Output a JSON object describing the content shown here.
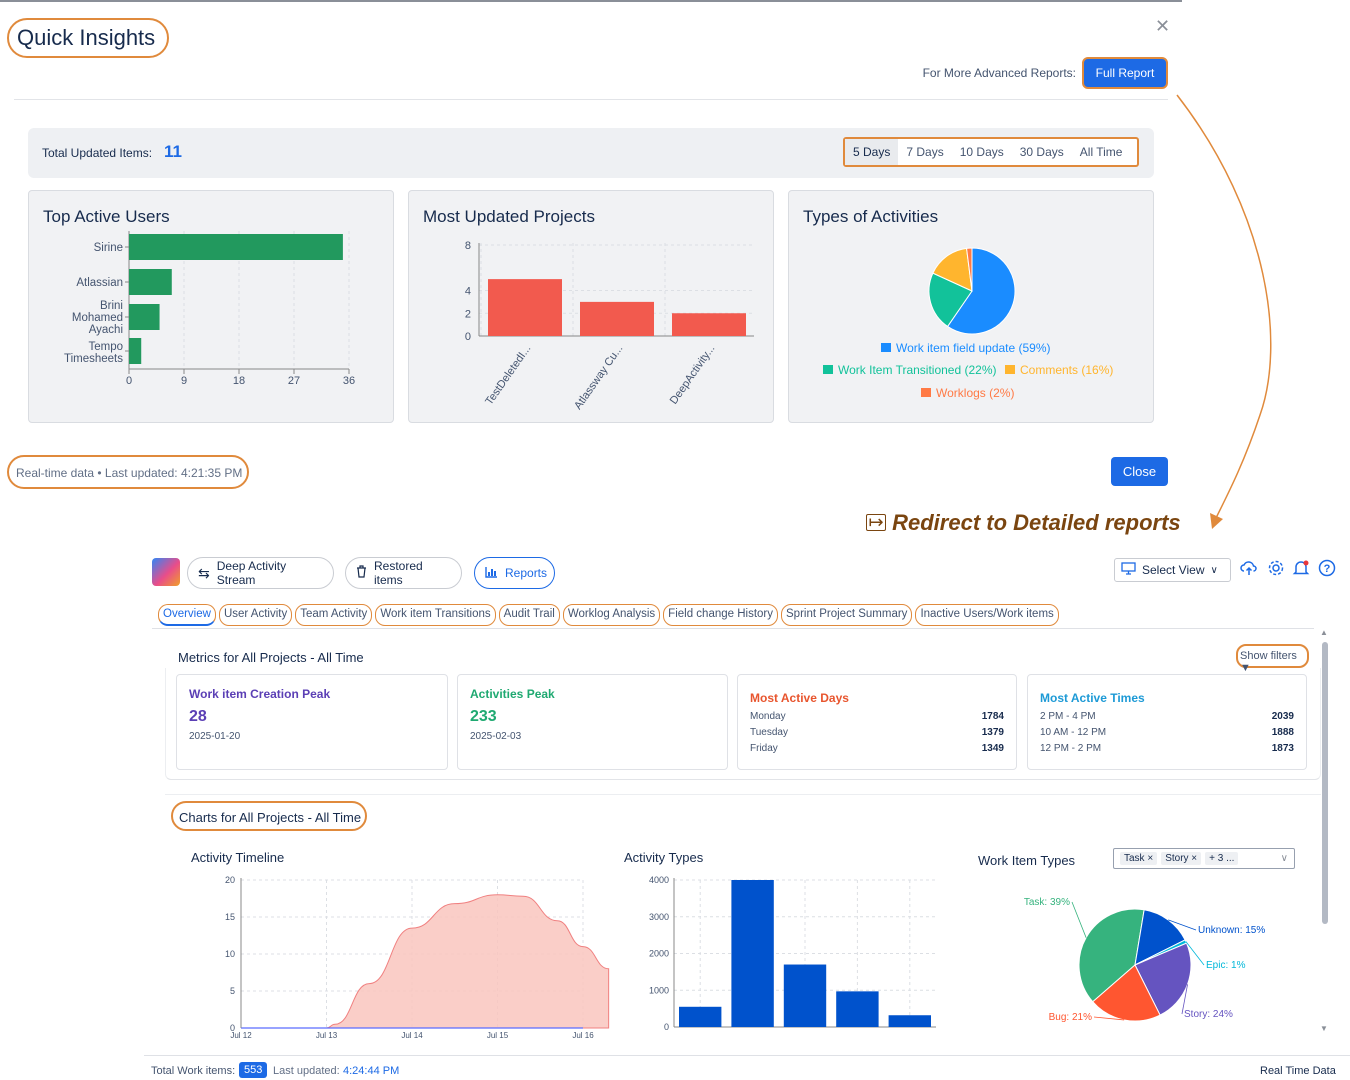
{
  "dialog": {
    "title": "Quick Insights",
    "advanced_label": "For More Advanced Reports:",
    "full_report": "Full Report",
    "total_label": "Total Updated Items:",
    "total_value": "11",
    "ranges": [
      "5 Days",
      "7 Days",
      "10 Days",
      "30 Days",
      "All Time"
    ],
    "active_range": "5 Days",
    "realtime_label": "Real-time data • Last updated: 4:21:35 PM",
    "close": "Close",
    "close_icon": "close-icon"
  },
  "redirect": {
    "text": "Redirect to Detailed reports",
    "icon": "redirect-icon"
  },
  "app": {
    "buttons": {
      "stream": "Deep Activity Stream",
      "restored": "Restored items",
      "reports": "Reports",
      "select_view": "Select View"
    },
    "tabs": [
      "Overview",
      "User Activity",
      "Team Activity",
      "Work item Transitions",
      "Audit Trail",
      "Worklog Analysis",
      "Field change History",
      "Sprint Project Summary",
      "Inactive Users/Work items"
    ],
    "active_tab": "Overview",
    "metrics_title": "Metrics for All Projects - All Time",
    "show_filters": "Show filters",
    "metrics": {
      "creation_peak": {
        "title": "Work item Creation Peak",
        "value": "28",
        "date": "2025-01-20",
        "color": "#5b3fb5"
      },
      "activities_peak": {
        "title": "Activities Peak",
        "value": "233",
        "date": "2025-02-03",
        "color": "#1fa971"
      },
      "active_days": {
        "title": "Most Active Days",
        "color": "#e8552e",
        "rows": [
          {
            "label": "Monday",
            "value": "1784"
          },
          {
            "label": "Tuesday",
            "value": "1379"
          },
          {
            "label": "Friday",
            "value": "1349"
          }
        ]
      },
      "active_times": {
        "title": "Most Active Times",
        "color": "#1d9ad6",
        "rows": [
          {
            "label": "2 PM - 4 PM",
            "value": "2039"
          },
          {
            "label": "10 AM - 12 PM",
            "value": "1888"
          },
          {
            "label": "12 PM - 2 PM",
            "value": "1873"
          }
        ]
      }
    },
    "charts_title": "Charts for All Projects - All Time",
    "work_item_filter": {
      "chips": [
        "Task",
        "Story",
        "+ 3 ..."
      ]
    },
    "footer": {
      "total_label": "Total Work items:",
      "total_value": "553",
      "updated_label": "Last updated:",
      "updated_value": "4:24:44 PM",
      "realtime": "Real Time Data"
    }
  },
  "chart_data": [
    {
      "type": "bar",
      "orientation": "horizontal",
      "title": "Top Active Users",
      "categories": [
        "Sirine",
        "Atlassian",
        "Brini Mohamed Ayachi",
        "Tempo Timesheets"
      ],
      "values": [
        35,
        7,
        5,
        2
      ],
      "xlim": [
        0,
        36
      ],
      "xticks": [
        "0",
        "9",
        "18",
        "27",
        "36"
      ],
      "color": "#22995e"
    },
    {
      "type": "bar",
      "title": "Most Updated Projects",
      "categories": [
        "TestDeletedI...",
        "Atlassway Cu...",
        "DeepActivity..."
      ],
      "values": [
        5,
        3,
        2
      ],
      "ylim": [
        0,
        8
      ],
      "yticks": [
        "0",
        "2",
        "4",
        "8"
      ],
      "color": "#f25a4e"
    },
    {
      "type": "pie",
      "title": "Types of Activities",
      "slices": [
        {
          "label": "Work item field update (59%)",
          "value": 59,
          "color": "#1a8cff"
        },
        {
          "label": "Work Item Transitioned (22%)",
          "value": 22,
          "color": "#12c29a"
        },
        {
          "label": "Comments (16%)",
          "value": 16,
          "color": "#ffb52e"
        },
        {
          "label": "Worklogs (2%)",
          "value": 2,
          "color": "#ff7a45"
        }
      ]
    },
    {
      "type": "area",
      "title": "Activity Timeline",
      "x_labels": [
        "Jul 12",
        "Jul 13",
        "Jul 14",
        "Jul 15",
        "Jul 16"
      ],
      "points": [
        [
          0,
          0
        ],
        [
          0.6,
          0
        ],
        [
          1,
          0
        ],
        [
          1.1,
          0.5
        ],
        [
          1.5,
          6
        ],
        [
          2,
          13.5
        ],
        [
          2.5,
          16.8
        ],
        [
          3,
          18
        ],
        [
          3.3,
          17.8
        ],
        [
          3.7,
          14.5
        ],
        [
          4,
          11
        ],
        [
          4.3,
          8
        ]
      ],
      "ylim": [
        0,
        20
      ],
      "yticks": [
        "0",
        "5",
        "10",
        "15",
        "20"
      ],
      "color": "#f08080"
    },
    {
      "type": "bar",
      "title": "Activity Types",
      "categories": [
        "",
        "",
        "",
        "",
        ""
      ],
      "values": [
        550,
        4000,
        1700,
        970,
        320
      ],
      "ylim": [
        0,
        4000
      ],
      "yticks": [
        "0",
        "1000",
        "2000",
        "3000",
        "4000"
      ],
      "color": "#0052cc"
    },
    {
      "type": "pie",
      "title": "Work Item Types",
      "slices": [
        {
          "label": "Task: 39%",
          "value": 39,
          "color": "#36b37e"
        },
        {
          "label": "Unknown: 15%",
          "value": 15,
          "color": "#0052cc"
        },
        {
          "label": "Epic: 1%",
          "value": 1,
          "color": "#00b8d9"
        },
        {
          "label": "Story: 24%",
          "value": 24,
          "color": "#6554c0"
        },
        {
          "label": "Bug: 21%",
          "value": 21,
          "color": "#ff5630"
        }
      ]
    }
  ]
}
